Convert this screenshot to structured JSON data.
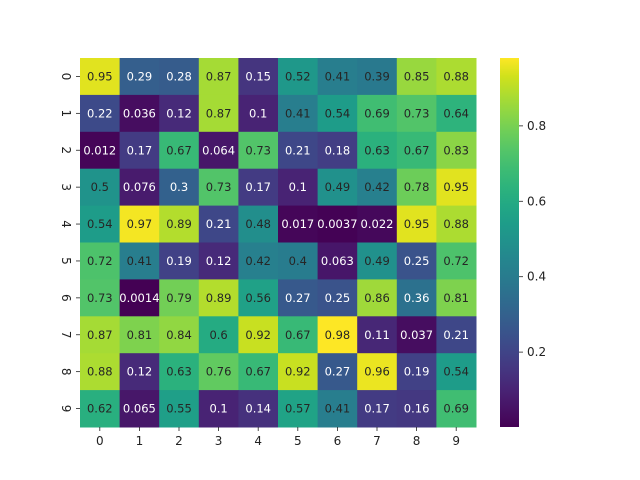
{
  "chart_data": {
    "type": "heatmap",
    "title": "",
    "xlabel": "",
    "ylabel": "",
    "x_categories": [
      "0",
      "1",
      "2",
      "3",
      "4",
      "5",
      "6",
      "7",
      "8",
      "9"
    ],
    "y_categories": [
      "0",
      "1",
      "2",
      "3",
      "4",
      "5",
      "6",
      "7",
      "8",
      "9"
    ],
    "values": [
      [
        0.95,
        0.29,
        0.28,
        0.87,
        0.15,
        0.52,
        0.41,
        0.39,
        0.85,
        0.88
      ],
      [
        0.22,
        0.036,
        0.12,
        0.87,
        0.1,
        0.41,
        0.54,
        0.69,
        0.73,
        0.64
      ],
      [
        0.012,
        0.17,
        0.67,
        0.064,
        0.73,
        0.21,
        0.18,
        0.63,
        0.67,
        0.83
      ],
      [
        0.5,
        0.076,
        0.3,
        0.73,
        0.17,
        0.1,
        0.49,
        0.42,
        0.78,
        0.95
      ],
      [
        0.54,
        0.97,
        0.89,
        0.21,
        0.48,
        0.017,
        0.0037,
        0.022,
        0.95,
        0.88
      ],
      [
        0.72,
        0.41,
        0.19,
        0.12,
        0.42,
        0.4,
        0.063,
        0.49,
        0.25,
        0.72
      ],
      [
        0.73,
        0.0014,
        0.79,
        0.89,
        0.56,
        0.27,
        0.25,
        0.86,
        0.36,
        0.81
      ],
      [
        0.87,
        0.81,
        0.84,
        0.6,
        0.92,
        0.67,
        0.98,
        0.11,
        0.037,
        0.21
      ],
      [
        0.88,
        0.12,
        0.63,
        0.76,
        0.67,
        0.92,
        0.27,
        0.96,
        0.19,
        0.54
      ],
      [
        0.62,
        0.065,
        0.55,
        0.1,
        0.14,
        0.57,
        0.41,
        0.17,
        0.16,
        0.69
      ]
    ],
    "colormap": "viridis",
    "color_range": [
      0.0014,
      0.98
    ],
    "colorbar": {
      "ticks": [
        0.2,
        0.4,
        0.6,
        0.8
      ],
      "tick_labels": [
        "0.2",
        "0.4",
        "0.6",
        "0.8"
      ],
      "placement": "right"
    },
    "annotations": true,
    "grid": false
  }
}
